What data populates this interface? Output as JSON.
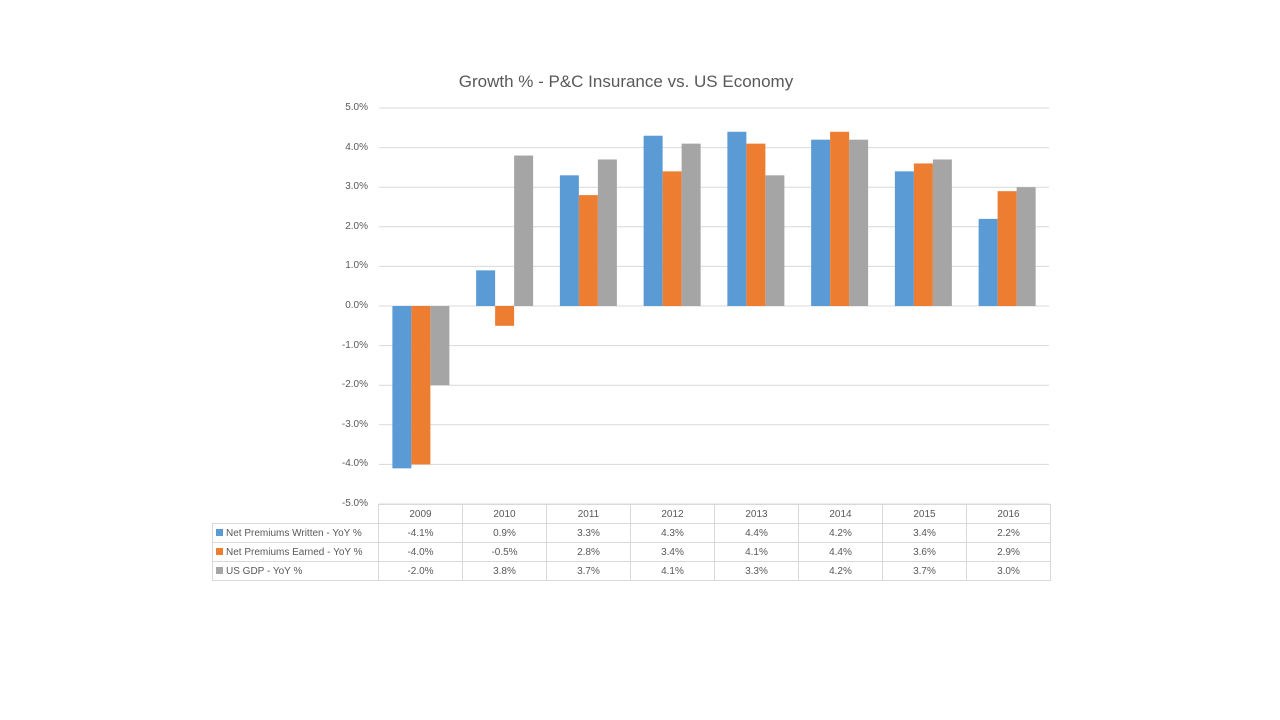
{
  "chart_data": {
    "type": "bar",
    "title": "Growth % - P&C Insurance vs. US Economy",
    "categories": [
      "2009",
      "2010",
      "2011",
      "2012",
      "2013",
      "2014",
      "2015",
      "2016"
    ],
    "ylim": [
      -5,
      5
    ],
    "yticks": [
      "5.0%",
      "4.0%",
      "3.0%",
      "2.0%",
      "1.0%",
      "0.0%",
      "-1.0%",
      "-2.0%",
      "-3.0%",
      "-4.0%",
      "-5.0%"
    ],
    "ytick_values": [
      5,
      4,
      3,
      2,
      1,
      0,
      -1,
      -2,
      -3,
      -4,
      -5
    ],
    "grid": true,
    "legend": "data table",
    "series": [
      {
        "name": "Net Premiums Written - YoY %",
        "color": "#5b9bd5",
        "values": [
          -4.1,
          0.9,
          3.3,
          4.3,
          4.4,
          4.2,
          3.4,
          2.2
        ],
        "labels": [
          "-4.1%",
          "0.9%",
          "3.3%",
          "4.3%",
          "4.4%",
          "4.2%",
          "3.4%",
          "2.2%"
        ]
      },
      {
        "name": "Net Premiums Earned - YoY %",
        "color": "#ed7d31",
        "values": [
          -4.0,
          -0.5,
          2.8,
          3.4,
          4.1,
          4.4,
          3.6,
          2.9
        ],
        "labels": [
          "-4.0%",
          "-0.5%",
          "2.8%",
          "3.4%",
          "4.1%",
          "4.4%",
          "3.6%",
          "2.9%"
        ]
      },
      {
        "name": "US GDP - YoY %",
        "color": "#a5a5a5",
        "values": [
          -2.0,
          3.8,
          3.7,
          4.1,
          3.3,
          4.2,
          3.7,
          3.0
        ],
        "labels": [
          "-2.0%",
          "3.8%",
          "3.7%",
          "4.1%",
          "3.3%",
          "4.2%",
          "3.7%",
          "3.0%"
        ]
      }
    ]
  }
}
